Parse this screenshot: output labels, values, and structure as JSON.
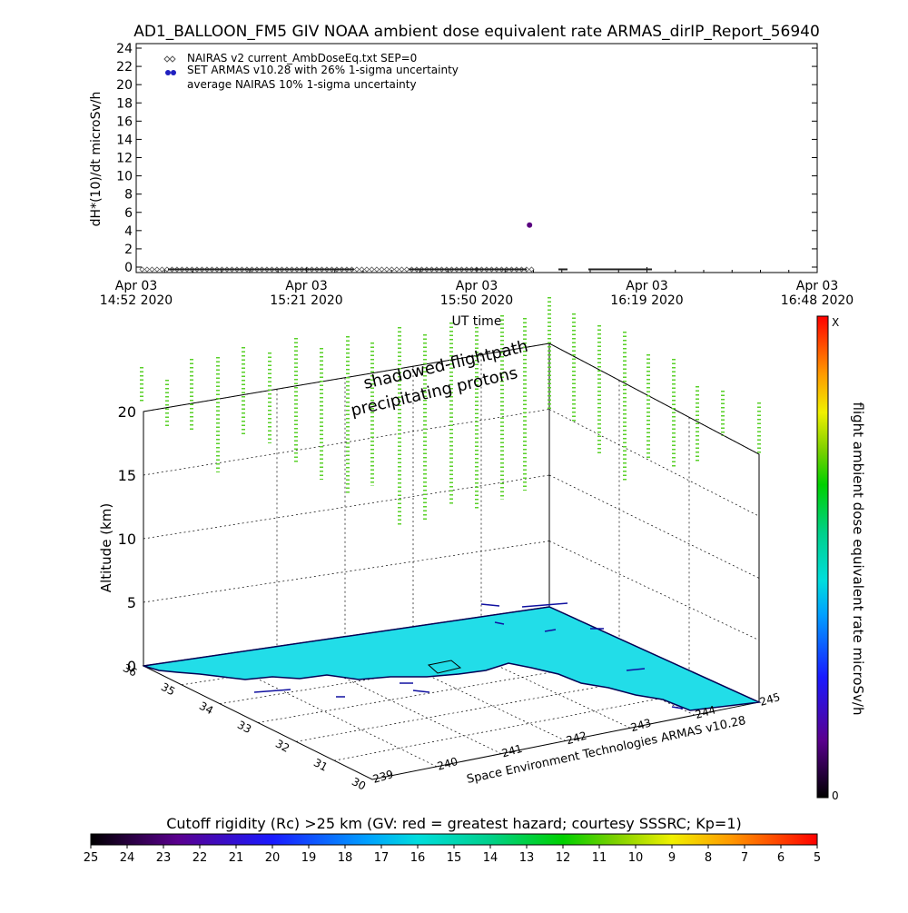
{
  "chart_data": [
    {
      "type": "scatter",
      "title": "AD1_BALLOON_FM5 GIV NOAA ambient dose equivalent rate ARMAS_dirIP_Report_56940",
      "ylabel": "dH*(10)/dt microSv/h",
      "xlabel": "UT time",
      "ylim": [
        0,
        24
      ],
      "yticks": [
        "0",
        "2",
        "4",
        "6",
        "8",
        "10",
        "12",
        "14",
        "16",
        "18",
        "20",
        "22",
        "24"
      ],
      "xticks": [
        {
          "date": "Apr 03",
          "time_year": "14:52 2020"
        },
        {
          "date": "Apr 03",
          "time_year": "15:21 2020"
        },
        {
          "date": "Apr 03",
          "time_year": "15:50 2020"
        },
        {
          "date": "Apr 03",
          "time_year": "16:19 2020"
        },
        {
          "date": "Apr 03",
          "time_year": "16:48 2020"
        }
      ],
      "xlim_minutes_utc": [
        892,
        1008
      ],
      "legend": [
        "NAIRAS v2 current_AmbDoseEq.txt SEP=0",
        "SET ARMAS v10.28 with 26% 1-sigma uncertainty",
        "average NAIRAS 10% 1-sigma uncertainty"
      ],
      "legend_position": "top-left",
      "series": [
        {
          "name": "NAIRAS v2 current_AmbDoseEq.txt SEP=0",
          "x_start_minutes_utc": 893,
          "x_end_minutes_utc": 960,
          "value": 0.05
        },
        {
          "name": "SET ARMAS v10.28 with 26% 1-sigma uncertainty",
          "points": [
            {
              "x_minutes_utc": 959,
              "y": 4.6
            }
          ]
        }
      ]
    },
    {
      "type": "3d-scatter",
      "annotations": [
        "shadowed-flightpath",
        "precipitating protons"
      ],
      "zlabel": "Altitude (km)",
      "zticks": [
        "0",
        "5",
        "10",
        "15",
        "20"
      ],
      "yticks_lat": [
        "30",
        "31",
        "32",
        "33",
        "34",
        "35",
        "36"
      ],
      "xticks_lon": [
        "239",
        "240",
        "241",
        "242",
        "243",
        "244",
        "245"
      ],
      "credit": "Space Environment Technologies ARMAS v10.28",
      "colorbar_label": "flight ambient dose equivalent rate microSv/h",
      "colorbar_top": "X",
      "colorbar_bottom": "0",
      "bottom_colorbar_label": "Cutoff rigidity (Rc) >25 km (GV: red = greatest hazard; courtesy SSSRC; Kp=1)",
      "bottom_colorbar_ticks": [
        "25",
        "24",
        "23",
        "22",
        "21",
        "20",
        "19",
        "18",
        "17",
        "16",
        "15",
        "14",
        "13",
        "12",
        "11",
        "10",
        "9",
        "8",
        "7",
        "6",
        "5"
      ]
    }
  ]
}
